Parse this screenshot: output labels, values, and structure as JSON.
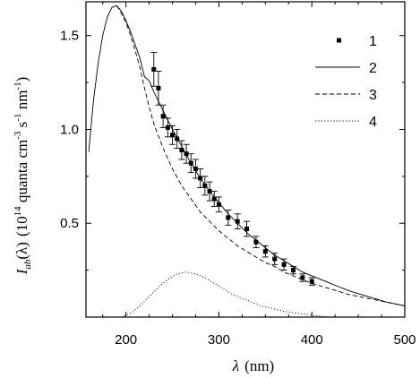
{
  "chart_data": {
    "type": "line",
    "xlabel_symbol": "λ",
    "xlabel_unit": "(nm)",
    "ylabel_main": "I",
    "ylabel_sub": "ab",
    "ylabel_arg": "(λ)",
    "ylabel_unit_prefix": "(10",
    "ylabel_unit_exp": "14",
    "ylabel_unit_rest1": " quanta cm",
    "ylabel_unit_exp2": "-3",
    "ylabel_unit_rest2": " s",
    "ylabel_unit_exp3": "-1",
    "ylabel_unit_rest3": " nm",
    "ylabel_unit_exp4": "-1",
    "ylabel_unit_suffix": ")",
    "xlim": [
      157,
      500
    ],
    "ylim": [
      0,
      1.68
    ],
    "xticks": [
      200,
      300,
      400,
      500
    ],
    "yticks": [
      0.5,
      1.0,
      1.5
    ],
    "xtick_labels": [
      "200",
      "300",
      "400",
      "500"
    ],
    "ytick_labels": [
      "0.5",
      "1.0",
      "1.5"
    ],
    "legend_position": "top-right",
    "series": [
      {
        "name": "1",
        "style": "markers-errorbars",
        "x": [
          230,
          235,
          240,
          245,
          250,
          255,
          260,
          265,
          270,
          275,
          280,
          285,
          290,
          295,
          300,
          310,
          320,
          330,
          340,
          350,
          360,
          370,
          380,
          390,
          400
        ],
        "y": [
          1.32,
          1.22,
          1.07,
          1.01,
          0.97,
          0.95,
          0.89,
          0.87,
          0.82,
          0.79,
          0.74,
          0.7,
          0.67,
          0.63,
          0.6,
          0.53,
          0.51,
          0.47,
          0.4,
          0.35,
          0.31,
          0.28,
          0.25,
          0.21,
          0.19
        ],
        "err": [
          0.09,
          0.09,
          0.06,
          0.05,
          0.05,
          0.05,
          0.05,
          0.05,
          0.05,
          0.05,
          0.05,
          0.05,
          0.05,
          0.04,
          0.04,
          0.04,
          0.04,
          0.04,
          0.03,
          0.03,
          0.03,
          0.03,
          0.02,
          0.02,
          0.02
        ]
      },
      {
        "name": "2",
        "style": "solid",
        "x": [
          160,
          165,
          170,
          175,
          180,
          185,
          190,
          195,
          200,
          205,
          210,
          215,
          220,
          225,
          230,
          240,
          250,
          260,
          270,
          280,
          290,
          300,
          310,
          320,
          330,
          340,
          350,
          360,
          370,
          380,
          390,
          400,
          420,
          440,
          460,
          480,
          500
        ],
        "y": [
          0.88,
          1.15,
          1.35,
          1.5,
          1.6,
          1.65,
          1.66,
          1.63,
          1.58,
          1.52,
          1.45,
          1.38,
          1.28,
          1.26,
          1.2,
          1.1,
          1.0,
          0.91,
          0.82,
          0.74,
          0.67,
          0.61,
          0.55,
          0.5,
          0.45,
          0.41,
          0.37,
          0.33,
          0.3,
          0.27,
          0.24,
          0.22,
          0.18,
          0.14,
          0.11,
          0.08,
          0.06
        ]
      },
      {
        "name": "3",
        "style": "dashed",
        "x": [
          190,
          195,
          200,
          205,
          210,
          215,
          220,
          225,
          230,
          240,
          250,
          260,
          270,
          280,
          290,
          300,
          310,
          320,
          330,
          340,
          350,
          360,
          370,
          380,
          390,
          400,
          420,
          440,
          460,
          480,
          500
        ],
        "y": [
          1.66,
          1.62,
          1.57,
          1.5,
          1.42,
          1.33,
          1.22,
          1.12,
          1.03,
          0.9,
          0.79,
          0.7,
          0.63,
          0.56,
          0.51,
          0.46,
          0.42,
          0.38,
          0.35,
          0.32,
          0.29,
          0.27,
          0.24,
          0.22,
          0.2,
          0.18,
          0.15,
          0.12,
          0.1,
          0.08,
          0.06
        ]
      },
      {
        "name": "4",
        "style": "dotted",
        "x": [
          195,
          205,
          215,
          225,
          235,
          245,
          255,
          265,
          275,
          285,
          295,
          305,
          315,
          325,
          335,
          345,
          355,
          370,
          385,
          400,
          420,
          440,
          460,
          480,
          500
        ],
        "y": [
          0.0,
          0.02,
          0.06,
          0.11,
          0.16,
          0.2,
          0.23,
          0.24,
          0.23,
          0.21,
          0.18,
          0.15,
          0.12,
          0.1,
          0.08,
          0.06,
          0.05,
          0.03,
          0.02,
          0.01,
          0.0,
          0.0,
          0.0,
          0.0,
          0.0
        ]
      }
    ]
  }
}
